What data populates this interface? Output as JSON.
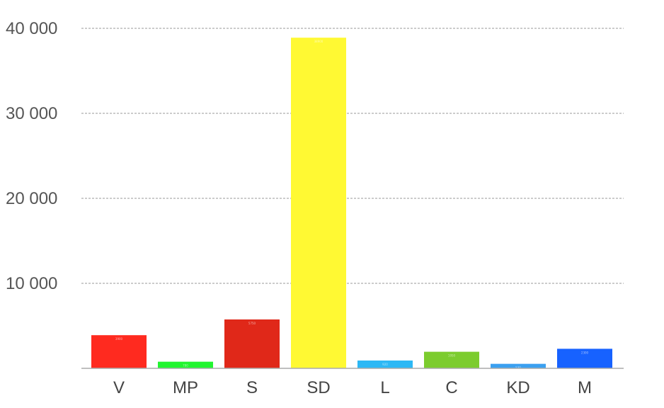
{
  "chart_data": {
    "type": "bar",
    "title": "",
    "xlabel": "",
    "ylabel": "",
    "categories": [
      "V",
      "MP",
      "S",
      "SD",
      "L",
      "C",
      "KD",
      "M"
    ],
    "values": [
      3900,
      780,
      5750,
      38900,
      920,
      1950,
      530,
      2300
    ],
    "colors": [
      "#ff2a1f",
      "#21f52f",
      "#e02819",
      "#fff933",
      "#2cb8f5",
      "#7ccc2e",
      "#3ba0f0",
      "#1762ff"
    ],
    "ylim": [
      0,
      40000
    ],
    "yticks": [
      {
        "value": 10000,
        "label": "10 000"
      },
      {
        "value": 20000,
        "label": "20 000"
      },
      {
        "value": 30000,
        "label": "30 000"
      },
      {
        "value": 40000,
        "label": "40 000"
      }
    ],
    "grid": true,
    "legend": "none"
  }
}
